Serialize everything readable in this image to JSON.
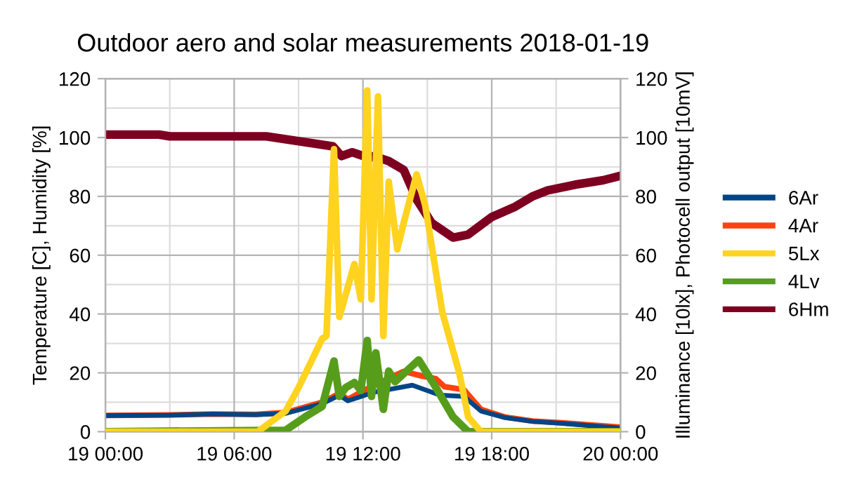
{
  "chart_data": {
    "type": "line",
    "title": "Outdoor aero and solar measurements 2018-01-19",
    "ylabel": "Temperature [C], Humidity [%]",
    "y2label": "Illuminance [10lx], Photocell output [10mV]",
    "xlim": [
      "2018-01-19T00:00",
      "2018-01-20T00:00"
    ],
    "xticks": [
      {
        "value": "2018-01-19T00:00",
        "label": "19 00:00"
      },
      {
        "value": "2018-01-19T06:00",
        "label": "19 06:00"
      },
      {
        "value": "2018-01-19T12:00",
        "label": "19 12:00"
      },
      {
        "value": "2018-01-19T18:00",
        "label": "19 18:00"
      },
      {
        "value": "2018-01-20T00:00",
        "label": "20 00:00"
      }
    ],
    "ylim": [
      0,
      120
    ],
    "yticks": [
      0,
      20,
      40,
      60,
      80,
      100,
      120
    ],
    "y2lim": [
      0,
      120
    ],
    "y2ticks": [
      0,
      20,
      40,
      60,
      80,
      100,
      120
    ],
    "grid": true,
    "legend": "right",
    "marker": "none",
    "line_style": "solid",
    "series": [
      {
        "name": "6Ar",
        "color": "#004586",
        "x": [
          "2018-01-19T00:00",
          "2018-01-19T03:00",
          "2018-01-19T05:00",
          "2018-01-19T07:00",
          "2018-01-19T08:24",
          "2018-01-19T10:06",
          "2018-01-19T10:54",
          "2018-01-19T11:18",
          "2018-01-19T12:30",
          "2018-01-19T14:18",
          "2018-01-19T15:36",
          "2018-01-19T16:42",
          "2018-01-19T17:30",
          "2018-01-19T18:36",
          "2018-01-19T19:54",
          "2018-01-19T21:18",
          "2018-01-20T00:00"
        ],
        "values": [
          5.5,
          5.6,
          6,
          5.8,
          6.2,
          9.5,
          12.4,
          10.5,
          13.4,
          15.8,
          12.4,
          12,
          7,
          4.8,
          3.5,
          2.8,
          1.2
        ]
      },
      {
        "name": "4Ar",
        "color": "#ff420e",
        "x": [
          "2018-01-19T00:00",
          "2018-01-19T03:00",
          "2018-01-19T05:00",
          "2018-01-19T07:00",
          "2018-01-19T08:24",
          "2018-01-19T10:06",
          "2018-01-19T10:54",
          "2018-01-19T11:18",
          "2018-01-19T12:18",
          "2018-01-19T13:54",
          "2018-01-19T14:42",
          "2018-01-19T15:24",
          "2018-01-19T15:48",
          "2018-01-19T16:42",
          "2018-01-19T17:30",
          "2018-01-19T18:36",
          "2018-01-19T19:54",
          "2018-01-19T21:18",
          "2018-01-20T00:00"
        ],
        "values": [
          5.5,
          5.7,
          6,
          5.9,
          6.5,
          10,
          13,
          11,
          15,
          20.5,
          19,
          18,
          15.3,
          14.3,
          7.6,
          5,
          3.6,
          3,
          1.5
        ]
      },
      {
        "name": "5Lx",
        "color": "#ffd320",
        "axis": "y2",
        "x": [
          "2018-01-19T00:00",
          "2018-01-19T07:06",
          "2018-01-19T08:24",
          "2018-01-19T09:00",
          "2018-01-19T09:36",
          "2018-01-19T10:06",
          "2018-01-19T10:18",
          "2018-01-19T10:39",
          "2018-01-19T10:54",
          "2018-01-19T11:36",
          "2018-01-19T11:54",
          "2018-01-19T12:12",
          "2018-01-19T12:24",
          "2018-01-19T12:42",
          "2018-01-19T12:57",
          "2018-01-19T13:12",
          "2018-01-19T13:36",
          "2018-01-19T13:54",
          "2018-01-19T14:30",
          "2018-01-19T14:54",
          "2018-01-19T15:42",
          "2018-01-19T16:30",
          "2018-01-19T16:54",
          "2018-01-19T17:30",
          "2018-01-20T00:00"
        ],
        "values": [
          0,
          0,
          7,
          15,
          24,
          31.6,
          32.5,
          96,
          39,
          57,
          45,
          116,
          45,
          114,
          32.5,
          85,
          62,
          71,
          87.5,
          77,
          40.6,
          19.6,
          5,
          0,
          0
        ]
      },
      {
        "name": "4Lv",
        "color": "#579d1c",
        "axis": "y2",
        "x": [
          "2018-01-19T00:00",
          "2018-01-19T08:24",
          "2018-01-19T09:18",
          "2018-01-19T10:06",
          "2018-01-19T10:39",
          "2018-01-19T10:54",
          "2018-01-19T11:12",
          "2018-01-19T11:36",
          "2018-01-19T11:54",
          "2018-01-19T12:12",
          "2018-01-19T12:24",
          "2018-01-19T12:36",
          "2018-01-19T12:57",
          "2018-01-19T13:12",
          "2018-01-19T13:30",
          "2018-01-19T14:36",
          "2018-01-19T15:24",
          "2018-01-19T16:12",
          "2018-01-19T16:54",
          "2018-01-20T00:00"
        ],
        "values": [
          0,
          0.5,
          5,
          8.6,
          24,
          12,
          15,
          16.7,
          14,
          31,
          12,
          26.8,
          7.6,
          20.6,
          17,
          24.4,
          15,
          5,
          0,
          0
        ]
      },
      {
        "name": "6Hm",
        "color": "#7e0021",
        "x": [
          "2018-01-19T00:00",
          "2018-01-19T02:30",
          "2018-01-19T03:00",
          "2018-01-19T07:30",
          "2018-01-19T10:36",
          "2018-01-19T11:00",
          "2018-01-19T11:30",
          "2018-01-19T12:18",
          "2018-01-19T12:30",
          "2018-01-19T13:12",
          "2018-01-19T13:54",
          "2018-01-19T14:30",
          "2018-01-19T15:12",
          "2018-01-19T16:12",
          "2018-01-19T16:54",
          "2018-01-19T18:00",
          "2018-01-19T19:06",
          "2018-01-19T19:54",
          "2018-01-19T20:36",
          "2018-01-19T21:54",
          "2018-01-19T23:12",
          "2018-01-20T00:00"
        ],
        "values": [
          101,
          101,
          100.4,
          100.4,
          97,
          93.7,
          95,
          93,
          93.7,
          92,
          89,
          79,
          71,
          66,
          67,
          73,
          76.5,
          80,
          82,
          84,
          85.5,
          87
        ]
      }
    ]
  }
}
